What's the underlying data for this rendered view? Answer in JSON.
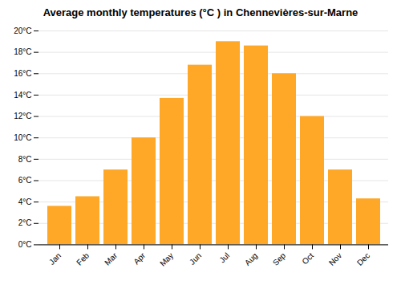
{
  "chart_data": {
    "type": "bar",
    "title": "Average monthly temperatures (°C ) in Chennevières-sur-Marne",
    "categories": [
      "Jan",
      "Feb",
      "Mar",
      "Apr",
      "May",
      "Jun",
      "Jul",
      "Aug",
      "Sep",
      "Oct",
      "Nov",
      "Dec"
    ],
    "values": [
      3.6,
      4.5,
      7.0,
      10.0,
      13.7,
      16.8,
      19.0,
      18.6,
      16.0,
      12.0,
      7.0,
      4.3
    ],
    "color": "#FFA726",
    "ylim": [
      0,
      20
    ],
    "yticks": [
      {
        "value": 0,
        "label": "0°C"
      },
      {
        "value": 2,
        "label": "2°C"
      },
      {
        "value": 4,
        "label": "4°C"
      },
      {
        "value": 6,
        "label": "6°C"
      },
      {
        "value": 8,
        "label": "8°C"
      },
      {
        "value": 10,
        "label": "10°C"
      },
      {
        "value": 12,
        "label": "12°C"
      },
      {
        "value": 14,
        "label": "14°C"
      },
      {
        "value": 16,
        "label": "16°C"
      },
      {
        "value": 18,
        "label": "18°C"
      },
      {
        "value": 20,
        "label": "20°C"
      }
    ],
    "grid": true
  }
}
